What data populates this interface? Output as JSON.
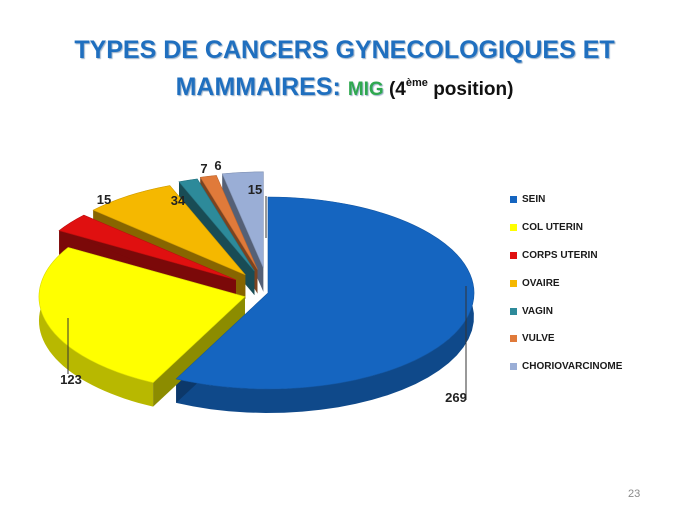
{
  "slide": {
    "title_line1": "TYPES DE CANCERS GYNECOLOGIQUES ET",
    "title_line2_main": "MAMMAIRES: ",
    "title_line2_mig": "MIG",
    "title_line2_rest_open": " (4",
    "title_line2_sup": "ème",
    "title_line2_rest_close": " position)",
    "page_number": "23"
  },
  "chart_data": {
    "type": "pie",
    "style": "3d exploded",
    "categories": [
      "SEIN",
      "COL UTERIN",
      "CORPS UTERIN",
      "OVAIRE",
      "VAGIN",
      "VULVE",
      "CHORIOVARCINOME"
    ],
    "values": [
      269,
      123,
      15,
      34,
      7,
      6,
      15
    ],
    "colors": [
      "#1565c0",
      "#ffff00",
      "#e01010",
      "#f5b800",
      "#2d8a9a",
      "#e07a3a",
      "#9aaed6"
    ],
    "legend_position": "right"
  }
}
